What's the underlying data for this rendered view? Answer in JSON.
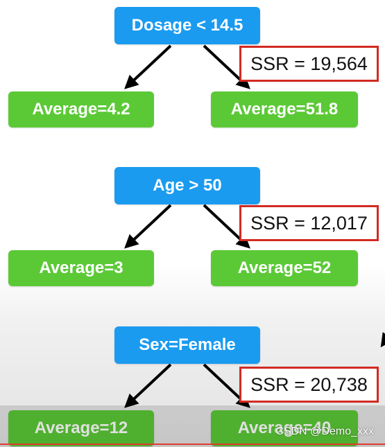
{
  "trees": [
    {
      "root": "Dosage < 14.5",
      "left_leaf": "Average=4.2",
      "right_leaf": "Average=51.8",
      "ssr": "SSR = 19,564"
    },
    {
      "root": "Age > 50",
      "left_leaf": "Average=3",
      "right_leaf": "Average=52",
      "ssr": "SSR = 12,017"
    },
    {
      "root": "Sex=Female",
      "left_leaf": "Average=12",
      "right_leaf": "Average=40",
      "ssr": "SSR = 20,738"
    }
  ],
  "watermark": "CSDN @Demo_xxx",
  "colors": {
    "root_node": "#1a9bf0",
    "leaf_node": "#5bc936",
    "ssr_border": "#d22a22",
    "arrow": "#000000"
  }
}
